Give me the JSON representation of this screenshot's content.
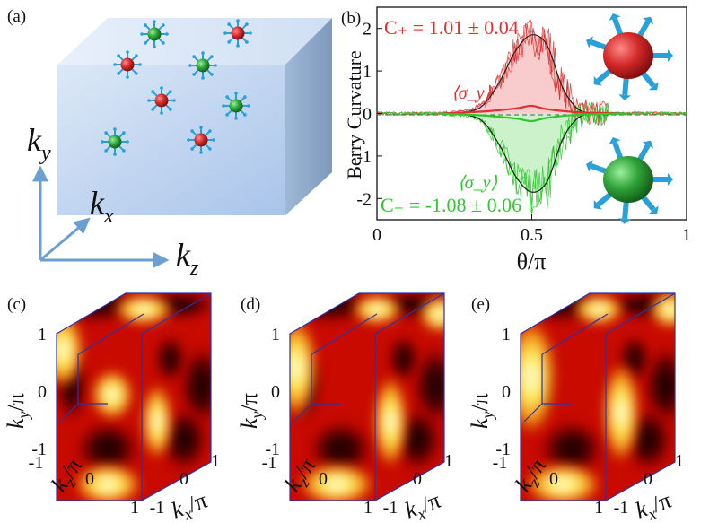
{
  "figure": {
    "panel_a": {
      "label": "(a)",
      "axis_ky": {
        "sym": "k",
        "sub": "y"
      },
      "axis_kx": {
        "sym": "k",
        "sub": "x"
      },
      "axis_kz": {
        "sym": "k",
        "sub": "z"
      },
      "colors": {
        "box_front": "#c7daf2",
        "box_side": "#93aed0",
        "box_top": "#dde8f7",
        "red_monopole": "#d42a2a",
        "green_monopole": "#2fa33a",
        "arrow": "#2aa0d8",
        "axis": "#6b9fd0"
      }
    },
    "panel_b": {
      "label": "(b)",
      "ylabel": "Berry Curvature",
      "xlabel": "θ/π",
      "c_plus": "C₊ = 1.01 ± 0.04",
      "c_minus": "C₋ = -1.08 ± 0.06",
      "sigma_upper": "⟨σ_y⟩",
      "sigma_lower": "⟨σ_y⟩",
      "colors": {
        "positive": "#e03030",
        "negative": "#2ec82e",
        "fill_pos": "#f8cccc",
        "fill_neg": "#ccf2cc",
        "theory": "#222222"
      }
    },
    "panels_cde": [
      {
        "label": "(c)",
        "ky": {
          "sym": "k",
          "sub": "y",
          "den": "/π"
        },
        "kz": {
          "sym": "k",
          "sub": "z",
          "den": "/π"
        },
        "kx": {
          "sym": "k",
          "sub": "x",
          "den": "/π"
        }
      },
      {
        "label": "(d)",
        "ky": {
          "sym": "k",
          "sub": "y",
          "den": "/π"
        },
        "kz": {
          "sym": "k",
          "sub": "z",
          "den": "/π"
        },
        "kx": {
          "sym": "k",
          "sub": "x",
          "den": "/π"
        }
      },
      {
        "label": "(e)",
        "ky": {
          "sym": "k",
          "sub": "y",
          "den": "/π"
        },
        "kz": {
          "sym": "k",
          "sub": "z",
          "den": "/π"
        },
        "kx": {
          "sym": "k",
          "sub": "x",
          "den": "/π"
        }
      }
    ],
    "cube_ticks": {
      "ky": [
        "1",
        "0",
        "-1"
      ],
      "kz": [
        "-1",
        "0",
        "1"
      ],
      "kx": [
        "-1",
        "0",
        "1"
      ]
    },
    "heatmap_colors": {
      "dark": "#1a0000",
      "red": "#c80a00",
      "orange": "#f08a10",
      "yellow": "#ffee60",
      "white": "#fffff0",
      "edge": "#2a33a8"
    }
  },
  "chart_data": {
    "type": "line",
    "title": "",
    "xlabel": "θ/π",
    "ylabel": "Berry Curvature",
    "xlim": [
      0,
      1
    ],
    "ylim": [
      -2.5,
      2.5
    ],
    "xticks": [
      "0",
      "0.5",
      "1"
    ],
    "yticks": [
      "2",
      "1",
      "0",
      "-1",
      "-2"
    ],
    "series": [
      {
        "name": "C₊ theory",
        "x": [
          0.2,
          0.3,
          0.35,
          0.4,
          0.45,
          0.5,
          0.55,
          0.6,
          0.65,
          0.7
        ],
        "values": [
          0.0,
          0.05,
          0.25,
          0.8,
          1.5,
          1.85,
          1.6,
          0.6,
          0.1,
          0.0
        ]
      },
      {
        "name": "C₋ theory",
        "x": [
          0.2,
          0.3,
          0.35,
          0.4,
          0.45,
          0.5,
          0.55,
          0.6,
          0.65,
          0.7
        ],
        "values": [
          0.0,
          -0.05,
          -0.25,
          -0.8,
          -1.5,
          -1.85,
          -1.6,
          -0.6,
          -0.1,
          0.0
        ]
      },
      {
        "name": "⟨σ_y⟩ upper",
        "x": [
          0.2,
          0.35,
          0.45,
          0.5,
          0.55,
          0.65,
          0.8
        ],
        "values": [
          0.0,
          0.05,
          0.12,
          0.18,
          0.1,
          0.03,
          0.0
        ]
      },
      {
        "name": "⟨σ_y⟩ lower",
        "x": [
          0.2,
          0.35,
          0.45,
          0.5,
          0.55,
          0.65,
          0.8
        ],
        "values": [
          0.0,
          -0.05,
          -0.12,
          -0.18,
          -0.1,
          -0.03,
          0.0
        ]
      }
    ]
  }
}
